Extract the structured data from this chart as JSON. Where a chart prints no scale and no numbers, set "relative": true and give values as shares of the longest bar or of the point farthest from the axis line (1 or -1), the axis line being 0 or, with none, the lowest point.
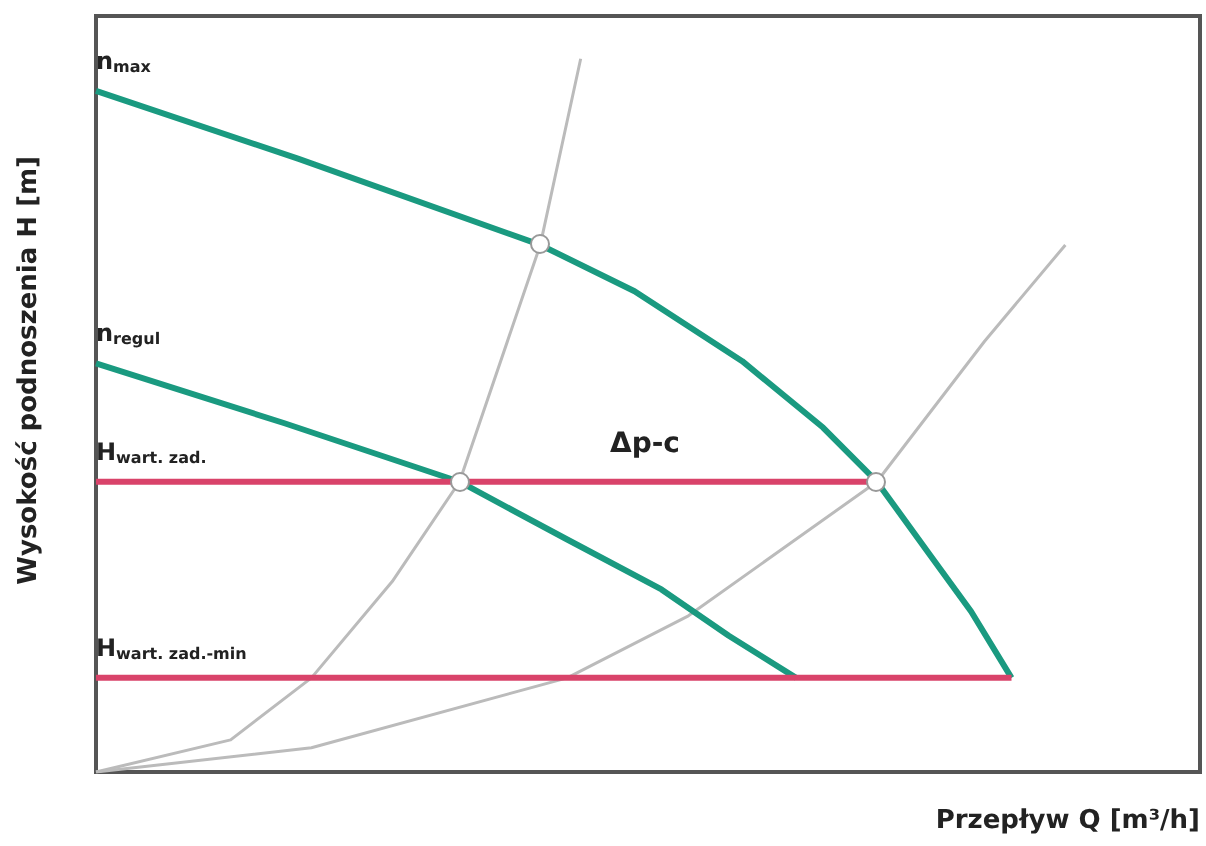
{
  "chart_data": {
    "type": "line",
    "relative": true,
    "xlabel": "Przepływ Q [m³/h]",
    "ylabel": "Wysokość podnoszenia H [m]",
    "marker": "none",
    "annotations": [
      "Δp-c"
    ],
    "categories": [
      null,
      null,
      null,
      null,
      null,
      null,
      null,
      null,
      null,
      null,
      null,
      null,
      null,
      null,
      null,
      null,
      null,
      null,
      null,
      null,
      null,
      null,
      null,
      null,
      null,
      null,
      null,
      null,
      null,
      null,
      null,
      null,
      null,
      null,
      null,
      null,
      null,
      null,
      null,
      null,
      null,
      null,
      null,
      null,
      null,
      null,
      null,
      null,
      null,
      null,
      null,
      null,
      null,
      null,
      null,
      null,
      null,
      null,
      null,
      null,
      null,
      null,
      null,
      null,
      null,
      null,
      null,
      null,
      null,
      null,
      null,
      null,
      null,
      null,
      null,
      null,
      null,
      null,
      null,
      null,
      null,
      null,
      null
    ],
    "series": [
      {
        "name": "n$_{max}$",
        "color": "#1a9a80",
        "values": [
          0.955,
          null,
          null,
          null,
          null,
          null,
          null,
          null,
          null,
          null,
          null,
          null,
          null,
          null,
          null,
          0.86,
          null,
          null,
          null,
          null,
          null,
          null,
          null,
          null,
          null,
          null,
          null,
          null,
          null,
          null,
          null,
          null,
          null,
          0.739,
          null,
          null,
          null,
          null,
          null,
          null,
          0.674,
          null,
          null,
          null,
          null,
          null,
          null,
          null,
          0.576,
          null,
          null,
          null,
          null,
          null,
          0.483,
          null,
          null,
          null,
          0.407,
          null,
          null,
          null,
          0.303,
          null,
          null,
          0.225,
          null,
          null,
          0.132,
          null,
          null,
          null,
          null,
          null,
          null,
          null,
          null,
          null,
          null,
          null,
          null,
          null,
          null
        ]
      },
      {
        "name": "n$_{regul}$",
        "color": "#1a9a80",
        "values": [
          0.573,
          null,
          null,
          null,
          null,
          null,
          null,
          null,
          null,
          null,
          null,
          null,
          null,
          null,
          0.489,
          null,
          null,
          null,
          null,
          null,
          null,
          null,
          null,
          null,
          null,
          null,
          null,
          0.407,
          null,
          null,
          null,
          null,
          null,
          null,
          null,
          0.326,
          null,
          null,
          null,
          null,
          null,
          null,
          0.256,
          null,
          null,
          null,
          null,
          0.191,
          null,
          null,
          null,
          null,
          0.132,
          null,
          null,
          null,
          null,
          null,
          null,
          null,
          null,
          null,
          null,
          null,
          null,
          null,
          null,
          null,
          null,
          null,
          null,
          null,
          null,
          null,
          null,
          null,
          null,
          null,
          null,
          null,
          null,
          null,
          null
        ]
      },
      {
        "name": "H$_{wart. zad.}$",
        "color": "#d9436a",
        "values": [
          0.407,
          null,
          null,
          null,
          null,
          null,
          null,
          null,
          null,
          null,
          null,
          null,
          null,
          null,
          null,
          null,
          null,
          null,
          null,
          null,
          null,
          null,
          null,
          null,
          null,
          null,
          null,
          null,
          null,
          null,
          null,
          null,
          null,
          null,
          null,
          null,
          null,
          null,
          null,
          null,
          null,
          null,
          null,
          null,
          null,
          null,
          null,
          null,
          null,
          null,
          null,
          null,
          null,
          null,
          null,
          null,
          null,
          null,
          0.407,
          null,
          null,
          null,
          null,
          null,
          null,
          null,
          null,
          null,
          null,
          null,
          null,
          null,
          null,
          null,
          null,
          null,
          null,
          null,
          null,
          null,
          null,
          null,
          null
        ]
      },
      {
        "name": "H$_{wart. zad.-min}$",
        "color": "#d9436a",
        "values": [
          0.132,
          null,
          null,
          null,
          null,
          null,
          null,
          null,
          null,
          null,
          null,
          null,
          null,
          null,
          null,
          null,
          null,
          null,
          null,
          null,
          null,
          null,
          null,
          null,
          null,
          null,
          null,
          null,
          null,
          null,
          null,
          null,
          null,
          null,
          null,
          null,
          null,
          null,
          null,
          null,
          null,
          null,
          null,
          null,
          null,
          null,
          null,
          null,
          null,
          null,
          null,
          null,
          null,
          null,
          null,
          null,
          null,
          null,
          null,
          null,
          null,
          null,
          null,
          null,
          null,
          null,
          null,
          null,
          0.132,
          null,
          null,
          null,
          null,
          null,
          null,
          null,
          null,
          null,
          null,
          null,
          null,
          null,
          null
        ]
      },
      {
        "color": "#bbbbbb",
        "values": [
          0,
          null,
          null,
          null,
          null,
          null,
          null,
          null,
          null,
          null,
          0.045,
          null,
          null,
          null,
          null,
          null,
          0.132,
          null,
          null,
          null,
          null,
          null,
          0.267,
          null,
          null,
          null,
          null,
          0.407,
          null,
          null,
          null,
          null,
          null,
          0.739,
          null,
          null,
          1,
          null,
          null,
          null,
          null,
          null,
          null,
          null,
          null,
          null,
          null,
          null,
          null,
          null,
          null,
          null,
          null,
          null,
          null,
          null,
          null,
          null,
          null,
          null,
          null,
          null,
          null,
          null,
          null,
          null,
          null,
          null,
          null,
          null,
          null,
          null,
          null,
          null,
          null,
          null,
          null,
          null,
          null,
          null,
          null,
          null,
          null
        ]
      },
      {
        "color": "#bbbbbb",
        "values": [
          0,
          null,
          null,
          null,
          null,
          null,
          null,
          null,
          null,
          null,
          null,
          null,
          null,
          null,
          null,
          null,
          0.034,
          null,
          null,
          null,
          null,
          null,
          null,
          null,
          null,
          null,
          null,
          null,
          null,
          null,
          null,
          null,
          null,
          null,
          null,
          0.132,
          null,
          null,
          null,
          null,
          null,
          null,
          null,
          null,
          0.219,
          null,
          null,
          null,
          null,
          null,
          null,
          null,
          null,
          null,
          null,
          null,
          null,
          null,
          0.407,
          null,
          null,
          null,
          null,
          null,
          null,
          null,
          0.604,
          null,
          null,
          null,
          null,
          null,
          0.739,
          null,
          null,
          null,
          null,
          null,
          null,
          null,
          null,
          null,
          null
        ]
      }
    ]
  }
}
